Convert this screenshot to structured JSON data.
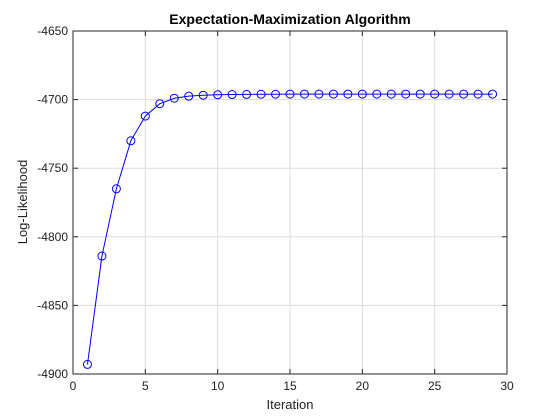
{
  "chart_data": {
    "type": "line",
    "title": "Expectation-Maximization Algorithm",
    "xlabel": "Iteration",
    "ylabel": "Log-Likelihood",
    "xlim": [
      0,
      30
    ],
    "ylim": [
      -4900,
      -4650
    ],
    "xticks": [
      0,
      5,
      10,
      15,
      20,
      25,
      30
    ],
    "yticks": [
      -4900,
      -4850,
      -4800,
      -4750,
      -4700,
      -4650
    ],
    "grid": true,
    "legend": false,
    "series": [
      {
        "color": "#0000ff",
        "marker": "circle",
        "x": [
          1,
          2,
          3,
          4,
          5,
          6,
          7,
          8,
          9,
          10,
          11,
          12,
          13,
          14,
          15,
          16,
          17,
          18,
          19,
          20,
          21,
          22,
          23,
          24,
          25,
          26,
          27,
          28,
          29
        ],
        "y": [
          -4893,
          -4814,
          -4765,
          -4730,
          -4712,
          -4703,
          -4699,
          -4697.5,
          -4696.8,
          -4696.5,
          -4696.3,
          -4696.2,
          -4696.1,
          -4696.1,
          -4696,
          -4696,
          -4696,
          -4696,
          -4696,
          -4696,
          -4696,
          -4696,
          -4696,
          -4696,
          -4696,
          -4696,
          -4696,
          -4696,
          -4696
        ]
      }
    ]
  }
}
